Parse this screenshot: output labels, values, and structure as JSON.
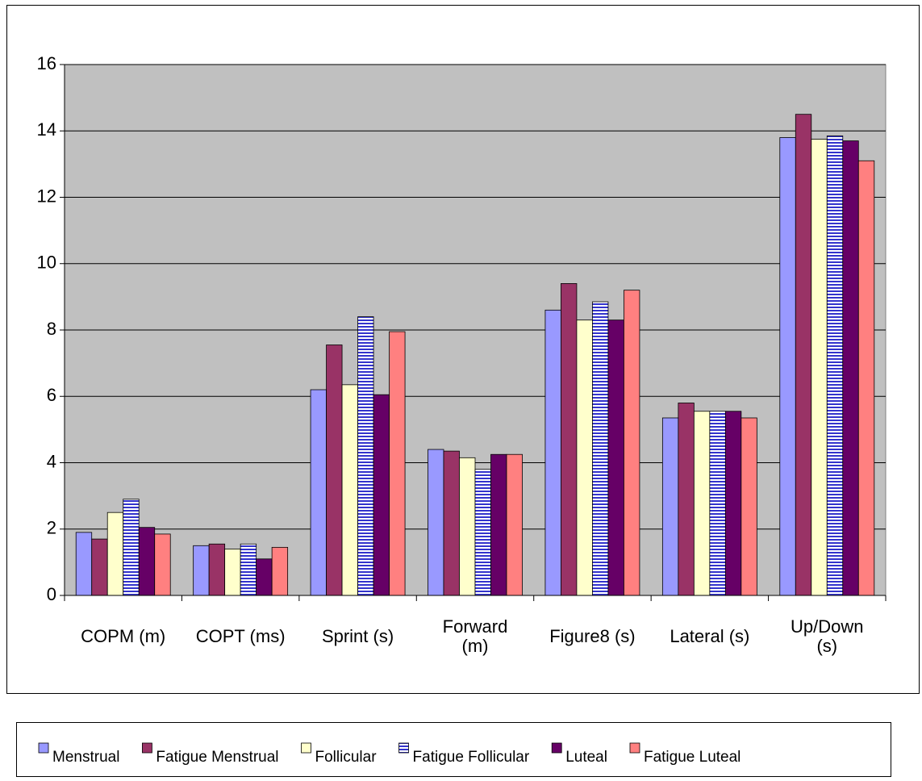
{
  "chart_data": {
    "type": "bar",
    "categories": [
      "COPM (m)",
      "COPT (ms)",
      "Sprint (s)",
      "Forward (m)",
      "Figure8 (s)",
      "Lateral (s)",
      "Up/Down (s)"
    ],
    "series": [
      {
        "name": "Menstrual",
        "color": "#9999ff",
        "values": [
          1.9,
          1.5,
          6.2,
          4.4,
          8.6,
          5.35,
          13.8
        ]
      },
      {
        "name": "Fatigue Menstrual",
        "color": "#993366",
        "values": [
          1.7,
          1.55,
          7.55,
          4.35,
          9.4,
          5.8,
          14.5
        ]
      },
      {
        "name": "Follicular",
        "color": "#ffffcc",
        "values": [
          2.5,
          1.4,
          6.35,
          4.15,
          8.3,
          5.55,
          13.75
        ]
      },
      {
        "name": "Fatigue Follicular",
        "color": "#3333cc",
        "hatch": "horizontal",
        "values": [
          2.9,
          1.55,
          8.4,
          3.8,
          8.85,
          5.55,
          13.85
        ]
      },
      {
        "name": "Luteal",
        "color": "#660066",
        "values": [
          2.05,
          1.1,
          6.05,
          4.25,
          8.3,
          5.55,
          13.7
        ]
      },
      {
        "name": "Fatigue Luteal",
        "color": "#ff8080",
        "values": [
          1.85,
          1.45,
          7.95,
          4.25,
          9.2,
          5.35,
          13.1
        ]
      }
    ],
    "ylim": [
      0,
      16
    ],
    "yticks": [
      0,
      2,
      4,
      6,
      8,
      10,
      12,
      14,
      16
    ],
    "grid": true,
    "plot_background": "#c0c0c0",
    "legend": "bottom"
  }
}
